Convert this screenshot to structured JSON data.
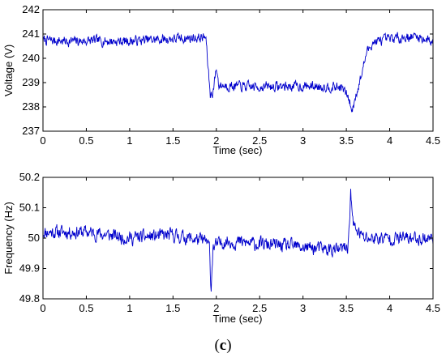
{
  "caption": {
    "open": "(",
    "letter": "c",
    "close": ")"
  },
  "series_color": "#0000cc",
  "chart_data": [
    {
      "type": "line",
      "xlabel": "Time (sec)",
      "ylabel": "Voltage (V)",
      "xlim": [
        0,
        4.5
      ],
      "ylim": [
        237,
        242
      ],
      "xticks": [
        "0",
        "0.5",
        "1",
        "1.5",
        "2",
        "2.5",
        "3",
        "3.5",
        "4",
        "4.5"
      ],
      "yticks": [
        "237",
        "238",
        "239",
        "240",
        "241",
        "242"
      ],
      "grid": false,
      "profile": [
        [
          0.0,
          240.75
        ],
        [
          0.3,
          240.7
        ],
        [
          0.6,
          240.72
        ],
        [
          0.9,
          240.7
        ],
        [
          1.2,
          240.75
        ],
        [
          1.5,
          240.8
        ],
        [
          1.8,
          240.85
        ],
        [
          1.88,
          240.85
        ],
        [
          1.9,
          239.8
        ],
        [
          1.93,
          238.5
        ],
        [
          1.96,
          238.6
        ],
        [
          2.0,
          239.6
        ],
        [
          2.03,
          238.9
        ],
        [
          2.4,
          238.82
        ],
        [
          2.8,
          238.85
        ],
        [
          3.2,
          238.85
        ],
        [
          3.45,
          238.8
        ],
        [
          3.52,
          238.4
        ],
        [
          3.57,
          237.8
        ],
        [
          3.6,
          238.4
        ],
        [
          3.66,
          239.1
        ],
        [
          3.73,
          240.2
        ],
        [
          3.8,
          240.65
        ],
        [
          4.1,
          240.85
        ],
        [
          4.3,
          240.9
        ],
        [
          4.5,
          240.7
        ]
      ],
      "noise_amplitude": 0.32,
      "seed": 7
    },
    {
      "type": "line",
      "xlabel": "Time (sec)",
      "ylabel": "Frequency (Hz)",
      "xlim": [
        0,
        4.5
      ],
      "ylim": [
        49.8,
        50.2
      ],
      "xticks": [
        "0",
        "0.5",
        "1",
        "1.5",
        "2",
        "2.5",
        "3",
        "3.5",
        "4",
        "4.5"
      ],
      "yticks": [
        "49.8",
        "49.9",
        "50",
        "50.1",
        "50.2"
      ],
      "grid": false,
      "profile": [
        [
          0.0,
          50.02
        ],
        [
          0.5,
          50.02
        ],
        [
          1.0,
          50.0
        ],
        [
          1.5,
          50.01
        ],
        [
          1.88,
          49.99
        ],
        [
          1.92,
          49.97
        ],
        [
          1.94,
          49.83
        ],
        [
          1.96,
          49.97
        ],
        [
          2.1,
          49.99
        ],
        [
          2.5,
          49.98
        ],
        [
          3.0,
          49.97
        ],
        [
          3.4,
          49.96
        ],
        [
          3.52,
          49.97
        ],
        [
          3.55,
          50.15
        ],
        [
          3.58,
          50.04
        ],
        [
          3.7,
          50.0
        ],
        [
          4.0,
          50.0
        ],
        [
          4.5,
          50.0
        ]
      ],
      "noise_amplitude": 0.035,
      "seed": 11
    }
  ]
}
